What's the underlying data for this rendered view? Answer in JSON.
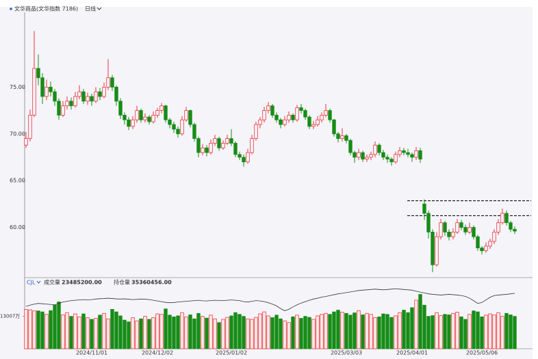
{
  "header": {
    "instrument": "文华商品(文华指数 7186)",
    "period": "日线"
  },
  "chart_data": {
    "type": "candlestick",
    "ohlc": [
      [
        68.8,
        70.2,
        68.5,
        69.5
      ],
      [
        69.5,
        72.6,
        69.2,
        72
      ],
      [
        72,
        81,
        71.8,
        77
      ],
      [
        77,
        78.5,
        75.2,
        76
      ],
      [
        76,
        76.5,
        73.2,
        74
      ],
      [
        74,
        75.8,
        73.6,
        75
      ],
      [
        75,
        75.6,
        74,
        74.5
      ],
      [
        74.5,
        74.8,
        73,
        73.5
      ],
      [
        73.5,
        73.8,
        71.5,
        72
      ],
      [
        72,
        73.5,
        71.8,
        73
      ],
      [
        73,
        74,
        72.6,
        73.5
      ],
      [
        73.5,
        73.9,
        72.6,
        73
      ],
      [
        73,
        74.5,
        72.8,
        74
      ],
      [
        74,
        75.2,
        73.7,
        74.5
      ],
      [
        74.5,
        74.8,
        73.2,
        73.5
      ],
      [
        73.5,
        74.4,
        73.1,
        74
      ],
      [
        74,
        74.3,
        73,
        73.5
      ],
      [
        73.5,
        75,
        73.3,
        74.5
      ],
      [
        74.5,
        74.9,
        73.6,
        74
      ],
      [
        74,
        75.5,
        73.8,
        75
      ],
      [
        75,
        78,
        74.7,
        76
      ],
      [
        76,
        76.3,
        74.6,
        75
      ],
      [
        75,
        75.2,
        73,
        73.5
      ],
      [
        73.5,
        73.8,
        71.6,
        72
      ],
      [
        72,
        72.3,
        71,
        71.5
      ],
      [
        71.5,
        71.8,
        70.4,
        70.8
      ],
      [
        70.8,
        71.9,
        70.5,
        71.5
      ],
      [
        71.5,
        73,
        71.2,
        72.5
      ],
      [
        72.5,
        72.7,
        71.2,
        71.5
      ],
      [
        71.5,
        72.2,
        71.2,
        71.8
      ],
      [
        71.8,
        72,
        71,
        71.3
      ],
      [
        71.3,
        72.4,
        71.1,
        72
      ],
      [
        72,
        72.8,
        71.7,
        72.5
      ],
      [
        72.5,
        73.3,
        72.2,
        73
      ],
      [
        73,
        73.1,
        71.2,
        71.5
      ],
      [
        71.5,
        71.7,
        70.6,
        71
      ],
      [
        71,
        71.3,
        70.1,
        70.5
      ],
      [
        70.5,
        70.8,
        69.6,
        70
      ],
      [
        70,
        71.9,
        69.8,
        71.5
      ],
      [
        71.5,
        72.9,
        71.3,
        72.5
      ],
      [
        72.5,
        72.6,
        70.7,
        71
      ],
      [
        71,
        71.2,
        69.2,
        69.5
      ],
      [
        69.5,
        69.7,
        67.5,
        68
      ],
      [
        68,
        68.9,
        67.7,
        68.5
      ],
      [
        68.5,
        68.8,
        67.6,
        68
      ],
      [
        68,
        69.4,
        67.8,
        69
      ],
      [
        69,
        69.9,
        68.7,
        69.5
      ],
      [
        69.5,
        69.7,
        68.2,
        68.5
      ],
      [
        68.5,
        69.3,
        68.3,
        69
      ],
      [
        69,
        69.9,
        68.8,
        69.5
      ],
      [
        69.5,
        70.5,
        68.7,
        69
      ],
      [
        69,
        69.2,
        67.5,
        67.8
      ],
      [
        67.8,
        68.1,
        67.2,
        67.5
      ],
      [
        67.5,
        67.8,
        66.5,
        67
      ],
      [
        67,
        68.4,
        66.8,
        68
      ],
      [
        68,
        69.9,
        67.8,
        69.5
      ],
      [
        69.5,
        71.3,
        69.3,
        71
      ],
      [
        71,
        71.8,
        70.6,
        71.5
      ],
      [
        71.5,
        72.9,
        71.2,
        72.5
      ],
      [
        72.5,
        73.4,
        72.2,
        73
      ],
      [
        73,
        73.2,
        71.7,
        72
      ],
      [
        72,
        72.3,
        71.2,
        71.5
      ],
      [
        71.5,
        71.7,
        70.6,
        71
      ],
      [
        71,
        71.9,
        70.8,
        71.5
      ],
      [
        71.5,
        72.4,
        71.2,
        72
      ],
      [
        72,
        72.2,
        71.2,
        71.5
      ],
      [
        71.5,
        73.1,
        71.3,
        72.8
      ],
      [
        72.8,
        73.2,
        72.2,
        72.5
      ],
      [
        72.5,
        72.7,
        71.5,
        71.8
      ],
      [
        71.8,
        72,
        70.5,
        70.8
      ],
      [
        70.8,
        71.4,
        70.5,
        71
      ],
      [
        71,
        71.9,
        70.8,
        71.5
      ],
      [
        71.5,
        72.3,
        71.2,
        72
      ],
      [
        72,
        73.2,
        71.8,
        72.5
      ],
      [
        72.5,
        72.7,
        71.2,
        71.5
      ],
      [
        71.5,
        71.6,
        69.7,
        70
      ],
      [
        70,
        70.2,
        69.1,
        69.5
      ],
      [
        69.5,
        70.6,
        69.2,
        69.8
      ],
      [
        69.8,
        70,
        69,
        69.3
      ],
      [
        69.3,
        69.5,
        67.7,
        68
      ],
      [
        68,
        68.2,
        66.9,
        67.5
      ],
      [
        67.5,
        68.4,
        67.2,
        68
      ],
      [
        68,
        68.2,
        67,
        67.3
      ],
      [
        67.3,
        67.8,
        67,
        67.5
      ],
      [
        67.5,
        68.1,
        67.2,
        67.8
      ],
      [
        67.8,
        69.2,
        67.5,
        68.8
      ],
      [
        68.8,
        69,
        67.7,
        68
      ],
      [
        68,
        68.3,
        67.2,
        67.5
      ],
      [
        67.5,
        67.8,
        66.9,
        67.3
      ],
      [
        67.3,
        67.5,
        66.6,
        67
      ],
      [
        67,
        68.1,
        66.8,
        67.8
      ],
      [
        67.8,
        68.6,
        67.5,
        68.2
      ],
      [
        68.2,
        68.5,
        67.7,
        68
      ],
      [
        68,
        68.4,
        67.5,
        67.8
      ],
      [
        67.8,
        68,
        67,
        67.5
      ],
      [
        67.5,
        68.6,
        67.2,
        68.2
      ],
      [
        68.2,
        68.5,
        66.9,
        67.3
      ],
      [
        62.5,
        63.0,
        60.8,
        61.5
      ],
      [
        61.5,
        61.8,
        58.8,
        59.5
      ],
      [
        59.5,
        59.8,
        55.2,
        56
      ],
      [
        56,
        59.5,
        55.8,
        59
      ],
      [
        59,
        60.9,
        58.7,
        60.5
      ],
      [
        60.5,
        60.7,
        59.1,
        59.5
      ],
      [
        59.5,
        59.8,
        58.6,
        59
      ],
      [
        59,
        59.9,
        58.7,
        59.5
      ],
      [
        59.5,
        60.9,
        59.3,
        60.5
      ],
      [
        60.5,
        60.8,
        59.7,
        60
      ],
      [
        60,
        60.3,
        59.2,
        59.5
      ],
      [
        59.5,
        60.5,
        59.3,
        60
      ],
      [
        60,
        60.2,
        58.7,
        59
      ],
      [
        59,
        59.2,
        57.5,
        57.8
      ],
      [
        57.8,
        58,
        57.1,
        57.5
      ],
      [
        57.5,
        58.4,
        57.3,
        58
      ],
      [
        58,
        58.8,
        57.7,
        58.5
      ],
      [
        58.5,
        59.8,
        58.2,
        59.5
      ],
      [
        59.5,
        60.9,
        59.2,
        60.5
      ],
      [
        60.5,
        62,
        60.3,
        61.5
      ],
      [
        61.5,
        61.8,
        60.2,
        60.5
      ],
      [
        60.5,
        60.7,
        59.5,
        59.8
      ],
      [
        59.8,
        60.1,
        59.3,
        59.6
      ]
    ],
    "ylim": [
      54.7,
      83.0
    ],
    "yticks": [
      {
        "value": 75,
        "label": "75.00"
      },
      {
        "value": 70,
        "label": "70.00"
      },
      {
        "value": 65,
        "label": "65.00"
      },
      {
        "value": 60,
        "label": "60.00"
      }
    ],
    "up_color": "#e8353b",
    "down_color": "#168c17",
    "hlines": [
      62.85,
      61.25
    ],
    "xlabels": [
      {
        "index": 16,
        "label": "2024/11/01"
      },
      {
        "index": 32,
        "label": "2024/12/02"
      },
      {
        "index": 50,
        "label": "2025/01/02"
      },
      {
        "index": 78,
        "label": "2025/03/03"
      },
      {
        "index": 94,
        "label": "2025/04/01"
      },
      {
        "index": 111,
        "label": "2025/05/06"
      }
    ],
    "volume": {
      "indicator": "CJL",
      "volume_label": "成交量",
      "volume_value": "23485200.00",
      "oi_label": "持仓量",
      "oi_value": "35360456.00",
      "values": [
        15800,
        15600,
        15200,
        15200,
        14800,
        13800,
        15300,
        17500,
        18800,
        13600,
        14500,
        13000,
        14000,
        12800,
        14000,
        12500,
        11800,
        12200,
        13500,
        14200,
        12000,
        15800,
        14800,
        13200,
        11500,
        10800,
        12500,
        11200,
        12000,
        13000,
        11800,
        12500,
        14000,
        13800,
        16000,
        13500,
        12800,
        13200,
        14500,
        12800,
        13600,
        12000,
        14200,
        13000,
        12300,
        13500,
        12000,
        10500,
        11800,
        12600,
        13200,
        14500,
        13800,
        13000,
        12000,
        11800,
        12600,
        14000,
        14800,
        13200,
        12500,
        13500,
        12000,
        11200,
        10500,
        12800,
        13500,
        12200,
        13000,
        12600,
        11800,
        13200,
        13800,
        14200,
        13800,
        14800,
        15500,
        14700,
        14200,
        13500,
        14400,
        15300,
        13600,
        14200,
        13800,
        12500,
        12800,
        14000,
        13800,
        12600,
        13200,
        14500,
        15500,
        14500,
        16500,
        19500,
        21800,
        17500,
        13000,
        13300,
        14500,
        13300,
        13800,
        13600,
        14200,
        14700,
        12800,
        11800,
        13800,
        15200,
        14800,
        12800,
        13500,
        14000,
        13600,
        14500,
        13000,
        14200,
        13600,
        13000
      ],
      "ylim": [
        0,
        28000
      ],
      "yticks": [
        {
          "value": 13007,
          "label": "13007万"
        }
      ],
      "oi": [
        2430,
        2500,
        2560,
        2600,
        2580,
        2560,
        2540,
        2520,
        2600,
        2680,
        2720,
        2760,
        2780,
        2800,
        2820,
        2800,
        2820,
        2850,
        2870,
        2880,
        2900,
        2880,
        2860,
        2850,
        2860,
        2840,
        2820,
        2830,
        2850,
        2840,
        2820,
        2780,
        2740,
        2700,
        2660,
        2640,
        2650,
        2680,
        2700,
        2720,
        2740,
        2760,
        2780,
        2750,
        2740,
        2760,
        2780,
        2770,
        2760,
        2780,
        2800,
        2780,
        2760,
        2700,
        2680,
        2720,
        2760,
        2740,
        2700,
        2640,
        2560,
        2460,
        2300,
        2180,
        2260,
        2400,
        2520,
        2620,
        2700,
        2780,
        2850,
        2900,
        2960,
        3000,
        3050,
        3100,
        3150,
        3180,
        3220,
        3260,
        3300,
        3340,
        3360,
        3380,
        3400,
        3420,
        3400,
        3380,
        3400,
        3420,
        3440,
        3420,
        3400,
        3380,
        3360,
        3300,
        3250,
        3200,
        3150,
        3120,
        3100,
        3080,
        3100,
        3120,
        3100,
        3080,
        3050,
        3000,
        2900,
        2750,
        2600,
        2650,
        2800,
        2950,
        3050,
        3080,
        3100,
        3120,
        3150,
        3180
      ],
      "oi_lim": [
        0,
        4000
      ],
      "oi_color": "#333333"
    }
  }
}
